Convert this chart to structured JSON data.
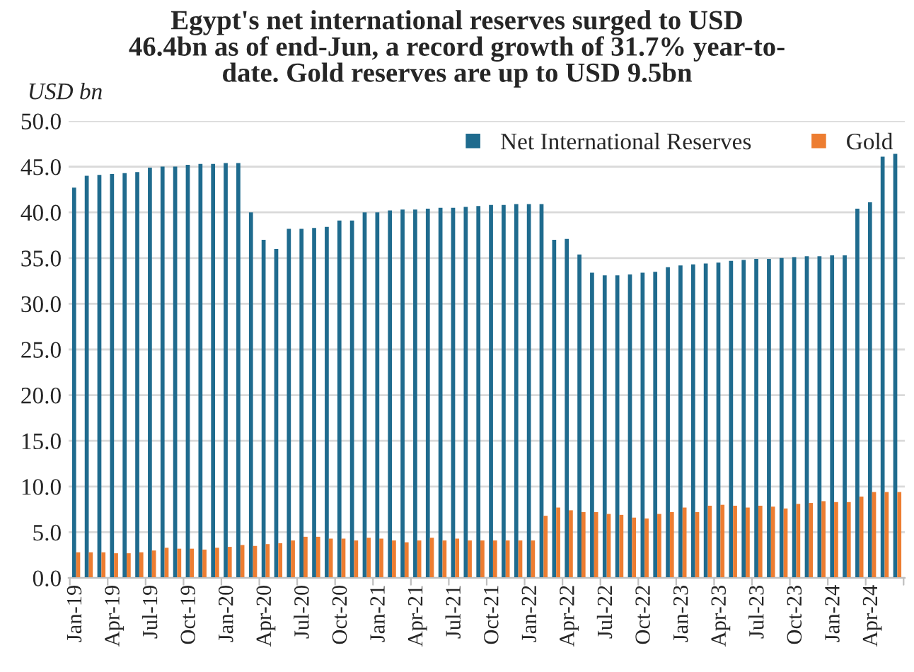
{
  "chart_data": {
    "type": "bar",
    "title": "Egypt's net international reserves surged to USD\n46.4bn as of end-Jun, a record growth of 31.7% year-to-\ndate. Gold reserves are up to USD 9.5bn",
    "ylabel": "USD bn",
    "categories": [
      "Jan-19",
      null,
      null,
      "Apr-19",
      null,
      null,
      "Jul-19",
      null,
      null,
      "Oct-19",
      null,
      null,
      "Jan-20",
      null,
      null,
      "Apr-20",
      null,
      null,
      "Jul-20",
      null,
      null,
      "Oct-20",
      null,
      null,
      "Jan-21",
      null,
      null,
      "Apr-21",
      null,
      null,
      "Jul-21",
      null,
      null,
      "Oct-21",
      null,
      null,
      "Jan-22",
      null,
      null,
      "Apr-22",
      null,
      null,
      "Jul-22",
      null,
      null,
      "Oct-22",
      null,
      null,
      "Jan-23",
      null,
      null,
      "Apr-23",
      null,
      null,
      "Jul-23",
      null,
      null,
      "Oct-23",
      null,
      null,
      "Jan-24",
      null,
      null,
      "Apr-24",
      null,
      null
    ],
    "series": [
      {
        "name": "Net International Reserves",
        "color": "#1f6b8e",
        "values": [
          42.7,
          44.0,
          44.1,
          44.2,
          44.3,
          44.4,
          44.9,
          45.0,
          45.0,
          45.2,
          45.3,
          45.3,
          45.4,
          45.4,
          40.0,
          37.0,
          36.0,
          38.2,
          38.2,
          38.3,
          38.4,
          39.1,
          39.1,
          40.0,
          40.0,
          40.2,
          40.3,
          40.3,
          40.4,
          40.5,
          40.5,
          40.6,
          40.7,
          40.8,
          40.8,
          40.9,
          40.9,
          40.9,
          37.0,
          37.1,
          35.4,
          33.4,
          33.1,
          33.1,
          33.2,
          33.4,
          33.5,
          34.0,
          34.2,
          34.3,
          34.4,
          34.5,
          34.7,
          34.8,
          34.9,
          34.9,
          35.0,
          35.1,
          35.2,
          35.2,
          35.3,
          35.3,
          40.4,
          41.1,
          46.1,
          46.4
        ]
      },
      {
        "name": "Gold",
        "color": "#ed7d31",
        "values": [
          2.8,
          2.8,
          2.8,
          2.7,
          2.7,
          2.8,
          3.0,
          3.3,
          3.2,
          3.2,
          3.1,
          3.3,
          3.4,
          3.6,
          3.5,
          3.7,
          3.8,
          4.1,
          4.5,
          4.5,
          4.3,
          4.3,
          4.1,
          4.4,
          4.3,
          4.1,
          3.9,
          4.1,
          4.4,
          4.1,
          4.3,
          4.1,
          4.1,
          4.1,
          4.1,
          4.1,
          4.1,
          6.8,
          7.7,
          7.4,
          7.2,
          7.2,
          7.0,
          6.9,
          6.6,
          6.5,
          7.0,
          7.2,
          7.7,
          7.2,
          7.9,
          8.0,
          7.9,
          7.7,
          7.9,
          7.8,
          7.6,
          8.1,
          8.2,
          8.4,
          8.3,
          8.3,
          8.9,
          9.4,
          9.4,
          9.4
        ]
      }
    ],
    "ylim": [
      0,
      50
    ],
    "yticks": [
      {
        "value": 0,
        "label": "0.0"
      },
      {
        "value": 5,
        "label": "5.0"
      },
      {
        "value": 10,
        "label": "10.0"
      },
      {
        "value": 15,
        "label": "15.0"
      },
      {
        "value": 20,
        "label": "20.0"
      },
      {
        "value": 25,
        "label": "25.0"
      },
      {
        "value": 30,
        "label": "30.0"
      },
      {
        "value": 35,
        "label": "35.0"
      },
      {
        "value": 40,
        "label": "40.0"
      },
      {
        "value": 45,
        "label": "45.0"
      },
      {
        "value": 50,
        "label": "50.0"
      }
    ],
    "grid": "y",
    "legend": "top right"
  }
}
